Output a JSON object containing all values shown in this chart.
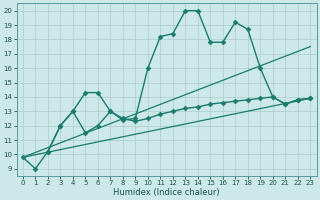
{
  "xlabel": "Humidex (Indice chaleur)",
  "background_color": "#cce8e8",
  "grid_color": "#aacccc",
  "line_color": "#1a7a6e",
  "xlim": [
    -0.5,
    23.5
  ],
  "ylim": [
    8.5,
    20.5
  ],
  "yticks": [
    9,
    10,
    11,
    12,
    13,
    14,
    15,
    16,
    17,
    18,
    19,
    20
  ],
  "xticks": [
    0,
    1,
    2,
    3,
    4,
    5,
    6,
    7,
    8,
    9,
    10,
    11,
    12,
    13,
    14,
    15,
    16,
    17,
    18,
    19,
    20,
    21,
    22,
    23
  ],
  "lines": [
    {
      "x": [
        0,
        1,
        2,
        3,
        4,
        5,
        6,
        7,
        8,
        9,
        10,
        11,
        12,
        13,
        14,
        15,
        16,
        17,
        18,
        19,
        20,
        21,
        22,
        23
      ],
      "y": [
        9.8,
        9.0,
        10.2,
        12.0,
        13.0,
        14.3,
        14.3,
        13.0,
        12.4,
        12.5,
        16.0,
        18.2,
        18.4,
        20.0,
        20.0,
        17.8,
        17.8,
        19.2,
        18.7,
        16.0,
        14.0,
        13.5,
        13.8,
        13.9
      ],
      "marker": "D",
      "markersize": 2.5,
      "linewidth": 1.0
    },
    {
      "x": [
        2,
        3,
        4,
        5,
        6,
        7,
        8,
        9,
        10,
        11,
        12,
        13,
        14,
        15,
        16,
        17,
        18,
        19,
        20,
        21,
        22,
        23
      ],
      "y": [
        10.2,
        12.0,
        13.0,
        11.5,
        12.0,
        13.0,
        12.5,
        12.3,
        12.5,
        12.8,
        13.0,
        13.2,
        13.3,
        13.5,
        13.6,
        13.7,
        13.8,
        13.9,
        14.0,
        13.5,
        13.8,
        13.9
      ],
      "marker": "D",
      "markersize": 2.5,
      "linewidth": 1.0
    },
    {
      "x": [
        0,
        23
      ],
      "y": [
        9.8,
        17.5
      ],
      "marker": null,
      "markersize": 0,
      "linewidth": 0.9
    },
    {
      "x": [
        0,
        23
      ],
      "y": [
        9.8,
        13.9
      ],
      "marker": null,
      "markersize": 0,
      "linewidth": 0.9
    }
  ]
}
